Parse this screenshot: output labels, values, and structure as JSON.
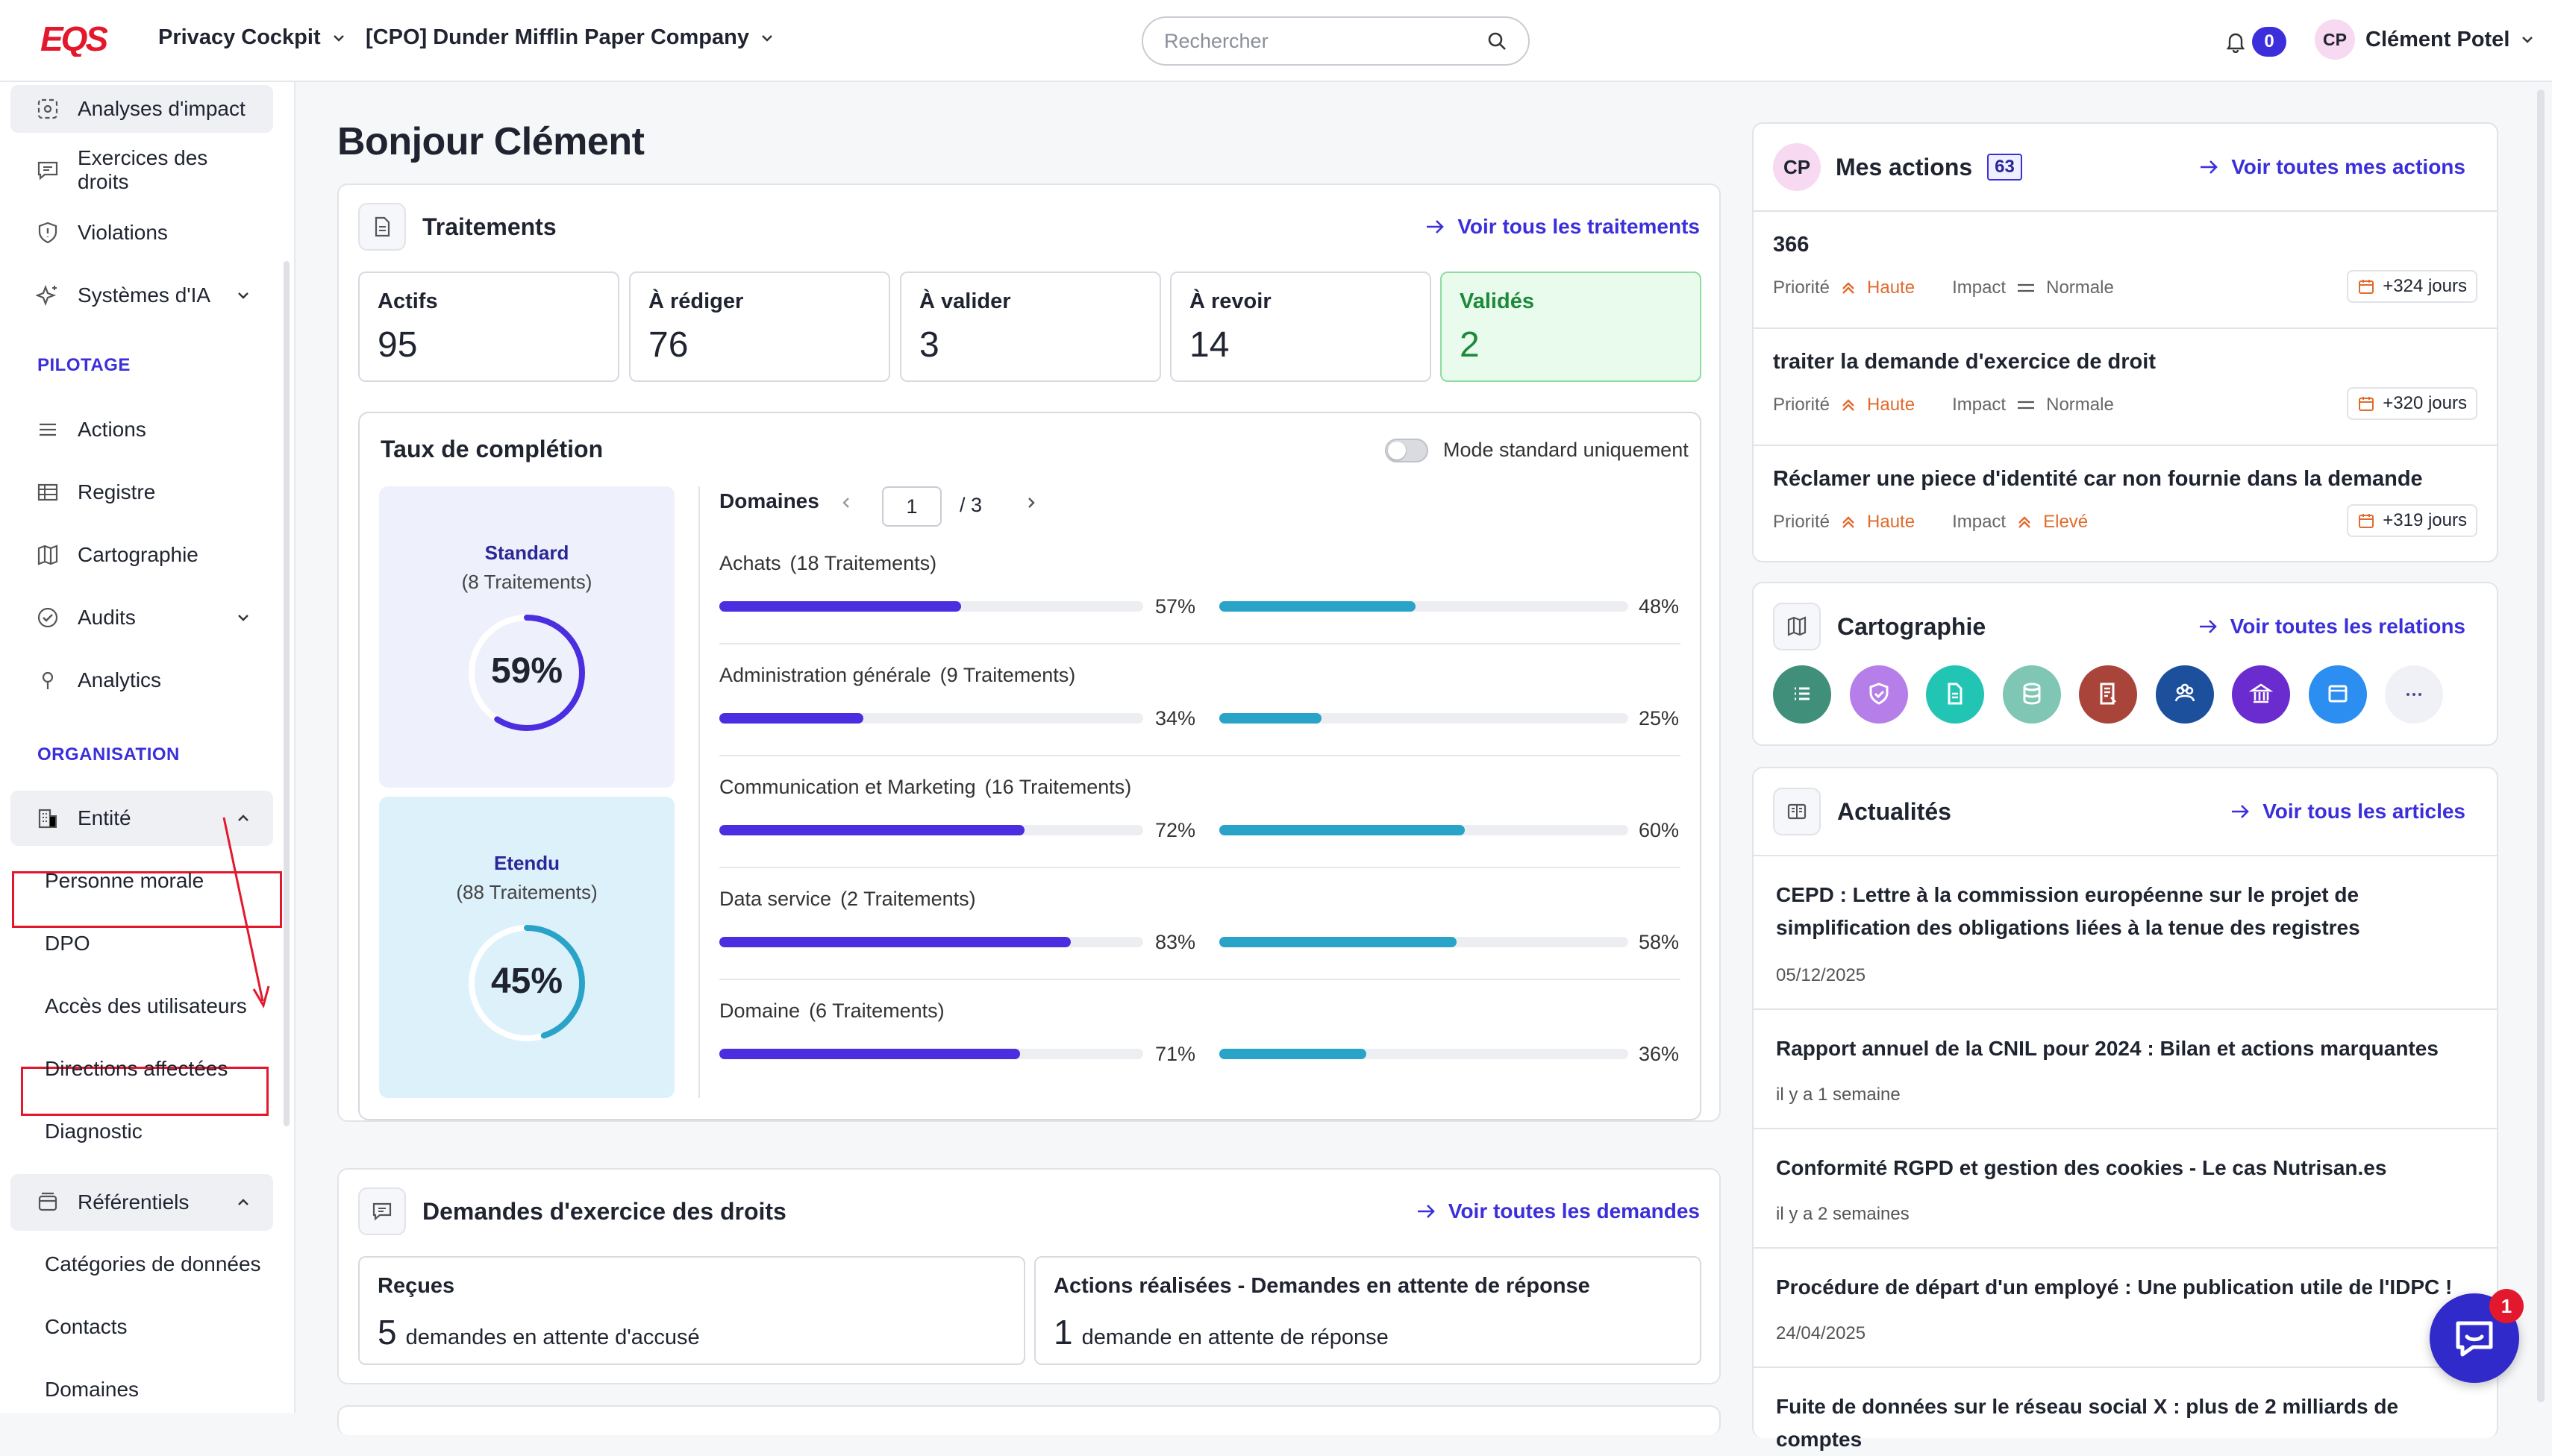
{
  "header": {
    "logo_text": "EQS",
    "product_menu": "Privacy Cockpit",
    "company_menu": "[CPO] Dunder Mifflin Paper Company",
    "search_placeholder": "Rechercher",
    "notifications_count": "0",
    "user_initials": "CP",
    "user_name": "Clément Potel"
  },
  "sidebar": {
    "items_top": [
      "Analyses d'impact",
      "Exercices des droits",
      "Violations",
      "Systèmes d'IA"
    ],
    "section_pilotage": "PILOTAGE",
    "items_pilotage": [
      "Actions",
      "Registre",
      "Cartographie",
      "Audits",
      "Analytics"
    ],
    "section_organisation": "ORGANISATION",
    "entite": "Entité",
    "entite_sub": [
      "Personne morale",
      "DPO",
      "Accès des utilisateurs",
      "Directions affectées",
      "Diagnostic"
    ],
    "referentiels": "Référentiels",
    "referentiels_sub": [
      "Catégories de données",
      "Contacts",
      "Domaines"
    ]
  },
  "greeting": "Bonjour Clément",
  "traitements": {
    "title": "Traitements",
    "link": "Voir tous les traitements",
    "stats": [
      {
        "label": "Actifs",
        "value": "95"
      },
      {
        "label": "À rédiger",
        "value": "76"
      },
      {
        "label": "À valider",
        "value": "3"
      },
      {
        "label": "À revoir",
        "value": "14"
      },
      {
        "label": "Validés",
        "value": "2"
      }
    ],
    "completion": {
      "title": "Taux de complétion",
      "toggle_label": "Mode standard uniquement",
      "standard": {
        "title": "Standard",
        "sub": "(8 Traitements)",
        "pct": "59%",
        "value": 59
      },
      "etendu": {
        "title": "Etendu",
        "sub": "(88 Traitements)",
        "pct": "45%",
        "value": 45
      },
      "domains_label": "Domaines",
      "page": "1",
      "pages": "/ 3",
      "domains": [
        {
          "name": "Achats",
          "count": "(18 Traitements)",
          "a": 57,
          "a_label": "57%",
          "b": 48,
          "b_label": "48%"
        },
        {
          "name": "Administration générale",
          "count": "(9 Traitements)",
          "a": 34,
          "a_label": "34%",
          "b": 25,
          "b_label": "25%"
        },
        {
          "name": "Communication et Marketing",
          "count": "(16 Traitements)",
          "a": 72,
          "a_label": "72%",
          "b": 60,
          "b_label": "60%"
        },
        {
          "name": "Data service",
          "count": "(2 Traitements)",
          "a": 83,
          "a_label": "83%",
          "b": 58,
          "b_label": "58%"
        },
        {
          "name": "Domaine",
          "count": "(6 Traitements)",
          "a": 71,
          "a_label": "71%",
          "b": 36,
          "b_label": "36%"
        }
      ]
    }
  },
  "demandes": {
    "title": "Demandes d'exercice des droits",
    "link": "Voir toutes les demandes",
    "recues_label": "Reçues",
    "recues_num": "5",
    "recues_text": "demandes en attente d'accusé",
    "actions_label": "Actions réalisées - Demandes en attente de réponse",
    "actions_num": "1",
    "actions_text": "demande en attente de réponse"
  },
  "mes_actions": {
    "initials": "CP",
    "title": "Mes actions",
    "count": "63",
    "link": "Voir toutes mes actions",
    "priorite_label": "Priorité",
    "impact_label": "Impact",
    "items": [
      {
        "title": "366",
        "priorite": "Haute",
        "impact": "Normale",
        "days": "+324 jours"
      },
      {
        "title": "traiter la demande d'exercice de droit",
        "priorite": "Haute",
        "impact": "Normale",
        "days": "+320 jours"
      },
      {
        "title": "Réclamer une piece d'identité car non fournie dans la demande",
        "priorite": "Haute",
        "impact": "Elevé",
        "days": "+319 jours"
      }
    ]
  },
  "cartographie": {
    "title": "Cartographie",
    "link": "Voir toutes les relations",
    "icons": [
      {
        "name": "list-icon",
        "color": "#3f8f7a"
      },
      {
        "name": "shield-check-icon",
        "color": "#b57ee8"
      },
      {
        "name": "document-icon",
        "color": "#22c4b4"
      },
      {
        "name": "database-icon",
        "color": "#7fc6b4"
      },
      {
        "name": "report-icon",
        "color": "#a9443b"
      },
      {
        "name": "people-icon",
        "color": "#1c4f9c"
      },
      {
        "name": "bank-icon",
        "color": "#6a2ccf"
      },
      {
        "name": "window-icon",
        "color": "#2b8ef0"
      },
      {
        "name": "more-icon",
        "color": "#f0f1f6"
      }
    ]
  },
  "actualites": {
    "title": "Actualités",
    "link": "Voir tous les articles",
    "items": [
      {
        "title": "CEPD : Lettre à la commission européenne sur le projet de simplification des obligations liées à la tenue des registres",
        "date": "05/12/2025"
      },
      {
        "title": "Rapport annuel de la CNIL pour 2024 : Bilan et actions marquantes",
        "date": "il y a 1 semaine"
      },
      {
        "title": "Conformité RGPD et gestion des cookies - Le cas Nutrisan.es",
        "date": "il y a 2 semaines"
      },
      {
        "title": "Procédure de départ d'un employé : Une publication utile de l'IDPC !",
        "date": "24/04/2025"
      },
      {
        "title": "Fuite de données sur le réseau social X : plus de 2 milliards de comptes",
        "date": ""
      }
    ]
  },
  "chat_badge": "1",
  "colors": {
    "accent": "#3b2fdb",
    "bar_a": "#4b2ee0",
    "bar_b": "#2aa3c9",
    "high": "#e06b2c",
    "validated_bg": "#e9fbec",
    "validated_text": "#1d8a3a"
  }
}
